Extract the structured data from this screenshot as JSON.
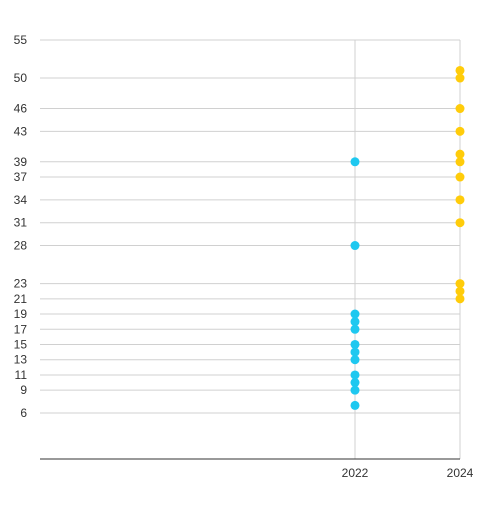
{
  "chart_data": {
    "type": "scatter",
    "title": "",
    "xlabel": "",
    "ylabel": "",
    "x_ticks": [
      2022,
      2024
    ],
    "y_ticks": [
      6,
      9,
      11,
      13,
      15,
      17,
      19,
      21,
      23,
      28,
      31,
      34,
      37,
      39,
      43,
      46,
      50,
      55
    ],
    "xlim": [
      2016,
      2024
    ],
    "ylim": [
      0,
      55
    ],
    "grid": true,
    "series": [
      {
        "color": "#1ec8f0",
        "points": [
          {
            "x": 2022,
            "y": 39
          },
          {
            "x": 2022,
            "y": 28
          },
          {
            "x": 2022,
            "y": 19
          },
          {
            "x": 2022,
            "y": 18
          },
          {
            "x": 2022,
            "y": 17
          },
          {
            "x": 2022,
            "y": 15
          },
          {
            "x": 2022,
            "y": 14
          },
          {
            "x": 2022,
            "y": 13
          },
          {
            "x": 2022,
            "y": 11
          },
          {
            "x": 2022,
            "y": 10
          },
          {
            "x": 2022,
            "y": 9
          },
          {
            "x": 2022,
            "y": 7
          }
        ]
      },
      {
        "color": "#ffcc0a",
        "points": [
          {
            "x": 2024,
            "y": 51
          },
          {
            "x": 2024,
            "y": 50
          },
          {
            "x": 2024,
            "y": 46
          },
          {
            "x": 2024,
            "y": 43
          },
          {
            "x": 2024,
            "y": 40
          },
          {
            "x": 2024,
            "y": 39
          },
          {
            "x": 2024,
            "y": 37
          },
          {
            "x": 2024,
            "y": 34
          },
          {
            "x": 2024,
            "y": 31
          },
          {
            "x": 2024,
            "y": 23
          },
          {
            "x": 2024,
            "y": 22
          },
          {
            "x": 2024,
            "y": 21
          }
        ]
      }
    ]
  }
}
